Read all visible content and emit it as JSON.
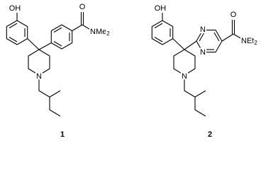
{
  "molecules": [
    {
      "hydroxyl": "OH",
      "carbonyl_oxygen": "O",
      "amide": {
        "text": "NMe",
        "sub": "2"
      },
      "ring_nitrogen": "N",
      "compound_number": "1"
    },
    {
      "hydroxyl": "OH",
      "pyrimidine_nitrogens": [
        "N",
        "N"
      ],
      "carbonyl_oxygen": "O",
      "amide": {
        "text": "NEt",
        "sub": "2"
      },
      "ring_nitrogen": "N",
      "compound_number": "2"
    }
  ]
}
